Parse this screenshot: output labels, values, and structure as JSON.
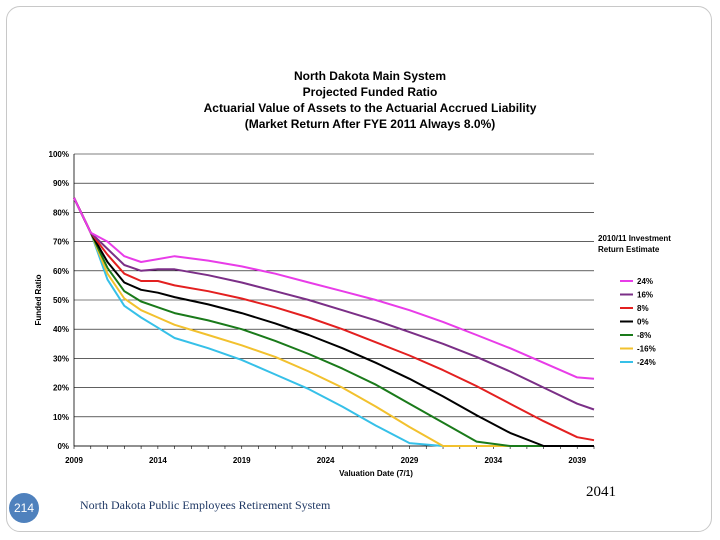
{
  "slide": {
    "footnote": "2041",
    "page_number": "214",
    "footer": "North Dakota Public Employees Retirement System"
  },
  "chart_data": {
    "type": "line",
    "title": [
      "North Dakota Main System",
      "Projected Funded Ratio",
      "Actuarial Value of Assets to the Actuarial Accrued Liability",
      "(Market Return After FYE 2011 Always 8.0%)"
    ],
    "xlabel": "Valuation Date (7/1)",
    "ylabel": "Funded Ratio",
    "xlim": [
      2009,
      2040
    ],
    "ylim": [
      0,
      100
    ],
    "x_ticks": [
      2009,
      2014,
      2019,
      2024,
      2029,
      2034,
      2039
    ],
    "y_ticks": [
      "0%",
      "10%",
      "20%",
      "30%",
      "40%",
      "50%",
      "60%",
      "70%",
      "80%",
      "90%",
      "100%"
    ],
    "grid": "horizontal",
    "legend_title": [
      "2010/11 Investment",
      "Return Estimate"
    ],
    "legend_position": "right",
    "x": [
      2009,
      2010,
      2011,
      2012,
      2013,
      2014,
      2015,
      2017,
      2019,
      2021,
      2023,
      2025,
      2027,
      2029,
      2031,
      2033,
      2035,
      2037,
      2039,
      2040
    ],
    "series": [
      {
        "name": "24%",
        "color": "#e83ce8",
        "values": [
          85,
          73,
          70,
          65,
          63,
          64,
          65,
          63.5,
          61.5,
          59,
          56,
          53,
          50,
          46.5,
          42.5,
          38,
          33.5,
          28.5,
          23.5,
          23
        ]
      },
      {
        "name": "16%",
        "color": "#7b2f87",
        "values": [
          85,
          73,
          67.5,
          62,
          60,
          60.5,
          60.5,
          58.5,
          56,
          53,
          50,
          46.5,
          43,
          39,
          35,
          30.5,
          25.5,
          20,
          14.5,
          12.5
        ]
      },
      {
        "name": "8%",
        "color": "#e32020",
        "values": [
          85,
          73,
          65.5,
          59,
          56.5,
          56.5,
          55,
          53,
          50.5,
          47.5,
          44,
          40,
          35.5,
          31,
          26,
          20.5,
          14.5,
          8.5,
          3,
          2
        ]
      },
      {
        "name": "0%",
        "color": "#000000",
        "values": [
          85,
          73,
          63,
          56,
          53.5,
          52.5,
          51,
          48.5,
          45.5,
          42,
          38,
          33.5,
          28.5,
          23,
          17,
          10.5,
          4.5,
          0,
          0,
          0
        ]
      },
      {
        "name": "-8%",
        "color": "#1a7a1a",
        "values": [
          85,
          73,
          61,
          53,
          49.5,
          47.5,
          45.5,
          43,
          40,
          36,
          31.5,
          26.5,
          21,
          14.5,
          8,
          1.5,
          0,
          0,
          0,
          0
        ]
      },
      {
        "name": "-16%",
        "color": "#f2c12e",
        "values": [
          85,
          73,
          59,
          50.5,
          46.5,
          44,
          41.5,
          38,
          34.5,
          30.5,
          25.5,
          20,
          13.5,
          6.5,
          0,
          0,
          0,
          0,
          0,
          0
        ]
      },
      {
        "name": "-24%",
        "color": "#36c0e8",
        "values": [
          85,
          73,
          57,
          48,
          44,
          40.5,
          37,
          33.5,
          29.5,
          24.5,
          19.5,
          13.5,
          7,
          1,
          0,
          0,
          0,
          0,
          0,
          0
        ]
      }
    ]
  }
}
